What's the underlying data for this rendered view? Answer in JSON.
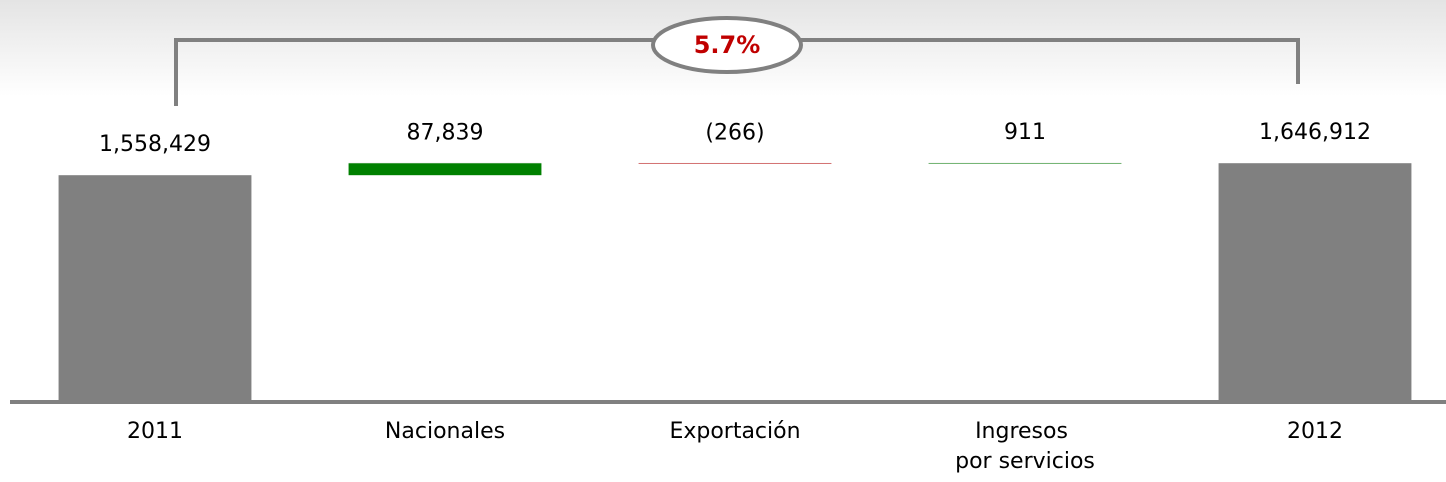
{
  "chart_data": {
    "type": "waterfall",
    "annotation": "5.7%",
    "categories": [
      "2011",
      "Nacionales",
      "Exportación",
      "Ingresos por servicios",
      "2012"
    ],
    "values": [
      1558429,
      87839,
      -266,
      911,
      1646912
    ],
    "value_labels": [
      "1,558,429",
      "87,839",
      "(266)",
      "911",
      "1,646,912"
    ],
    "colors": {
      "total": "#808080",
      "increase": "#008000",
      "decrease": "#c00000"
    },
    "ylim": [
      -100000,
      1700000
    ]
  }
}
